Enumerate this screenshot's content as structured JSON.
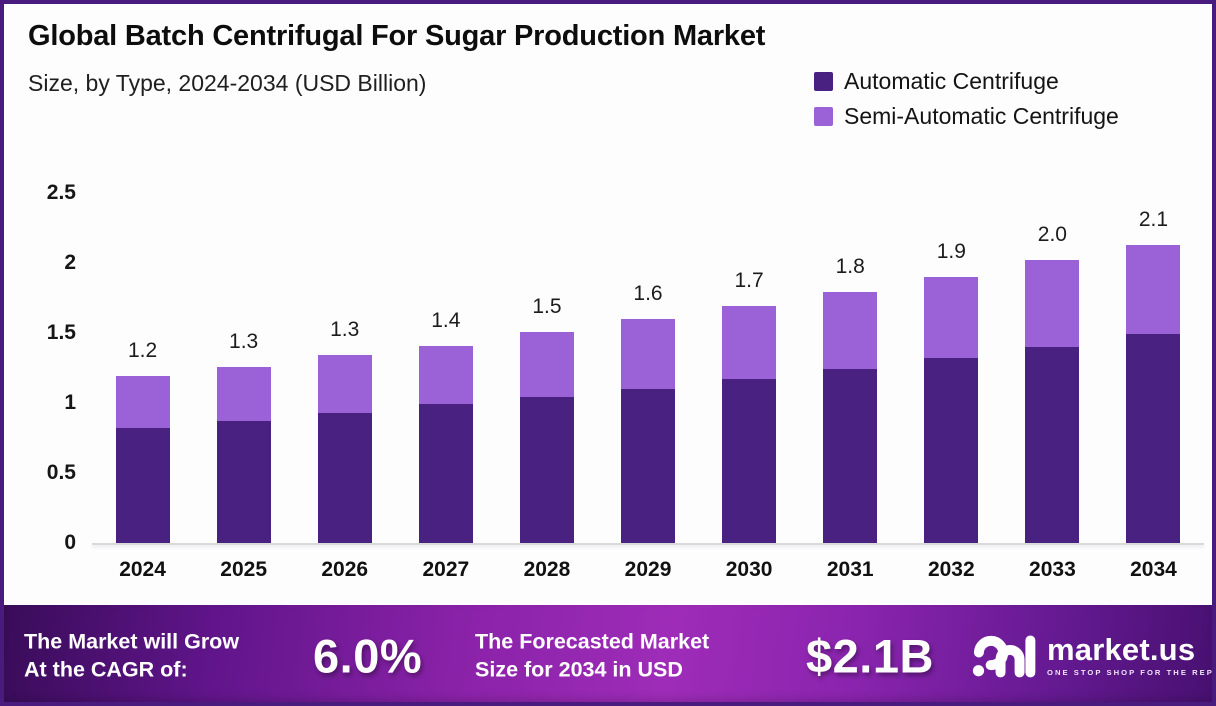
{
  "header": {
    "title": "Global Batch Centrifugal For Sugar Production Market",
    "subtitle": "Size, by Type, 2024-2034 (USD Billion)"
  },
  "legend": {
    "items": [
      {
        "label": "Automatic Centrifuge",
        "color": "#482181"
      },
      {
        "label": "Semi-Automatic Centrifuge",
        "color": "#9a62d6"
      }
    ]
  },
  "chart_data": {
    "type": "bar",
    "stacked": true,
    "title": "Global Batch Centrifugal For Sugar Production Market Size, by Type, 2024-2034 (USD Billion)",
    "unit": "USD Billion",
    "categories": [
      "2024",
      "2025",
      "2026",
      "2027",
      "2028",
      "2029",
      "2030",
      "2031",
      "2032",
      "2033",
      "2034"
    ],
    "series": [
      {
        "name": "Automatic Centrifuge",
        "color": "#482181",
        "values": [
          0.82,
          0.87,
          0.93,
          0.99,
          1.04,
          1.1,
          1.17,
          1.24,
          1.32,
          1.4,
          1.49
        ]
      },
      {
        "name": "Semi-Automatic Centrifuge",
        "color": "#9a62d6",
        "values": [
          0.37,
          0.39,
          0.41,
          0.42,
          0.47,
          0.5,
          0.52,
          0.55,
          0.58,
          0.62,
          0.64
        ]
      }
    ],
    "total_labels": [
      "1.2",
      "1.3",
      "1.3",
      "1.4",
      "1.5",
      "1.6",
      "1.7",
      "1.8",
      "1.9",
      "2.0",
      "2.1"
    ],
    "y_ticks": [
      "2.5",
      "2",
      "1.5",
      "1",
      "0.5",
      "0"
    ],
    "ylim": [
      0,
      2.5
    ],
    "grid": false,
    "legend_position": "top-right"
  },
  "footer": {
    "cagr_line1": "The Market will Grow",
    "cagr_line2": "At the CAGR of:",
    "cagr_value": "6.0%",
    "forecast_line1": "The Forecasted Market",
    "forecast_line2": "Size for 2034 in USD",
    "forecast_value": "$2.1B",
    "brand_name": "market.us",
    "brand_tagline": "ONE STOP SHOP FOR THE REPORTS"
  },
  "colors": {
    "page_border": "#4a1b7e",
    "background": "#fdfdfe",
    "axis_line": "#d9d9d9",
    "banner_left": "#380c58",
    "banner_center": "#9e2cb8",
    "banner_right": "#471070"
  }
}
